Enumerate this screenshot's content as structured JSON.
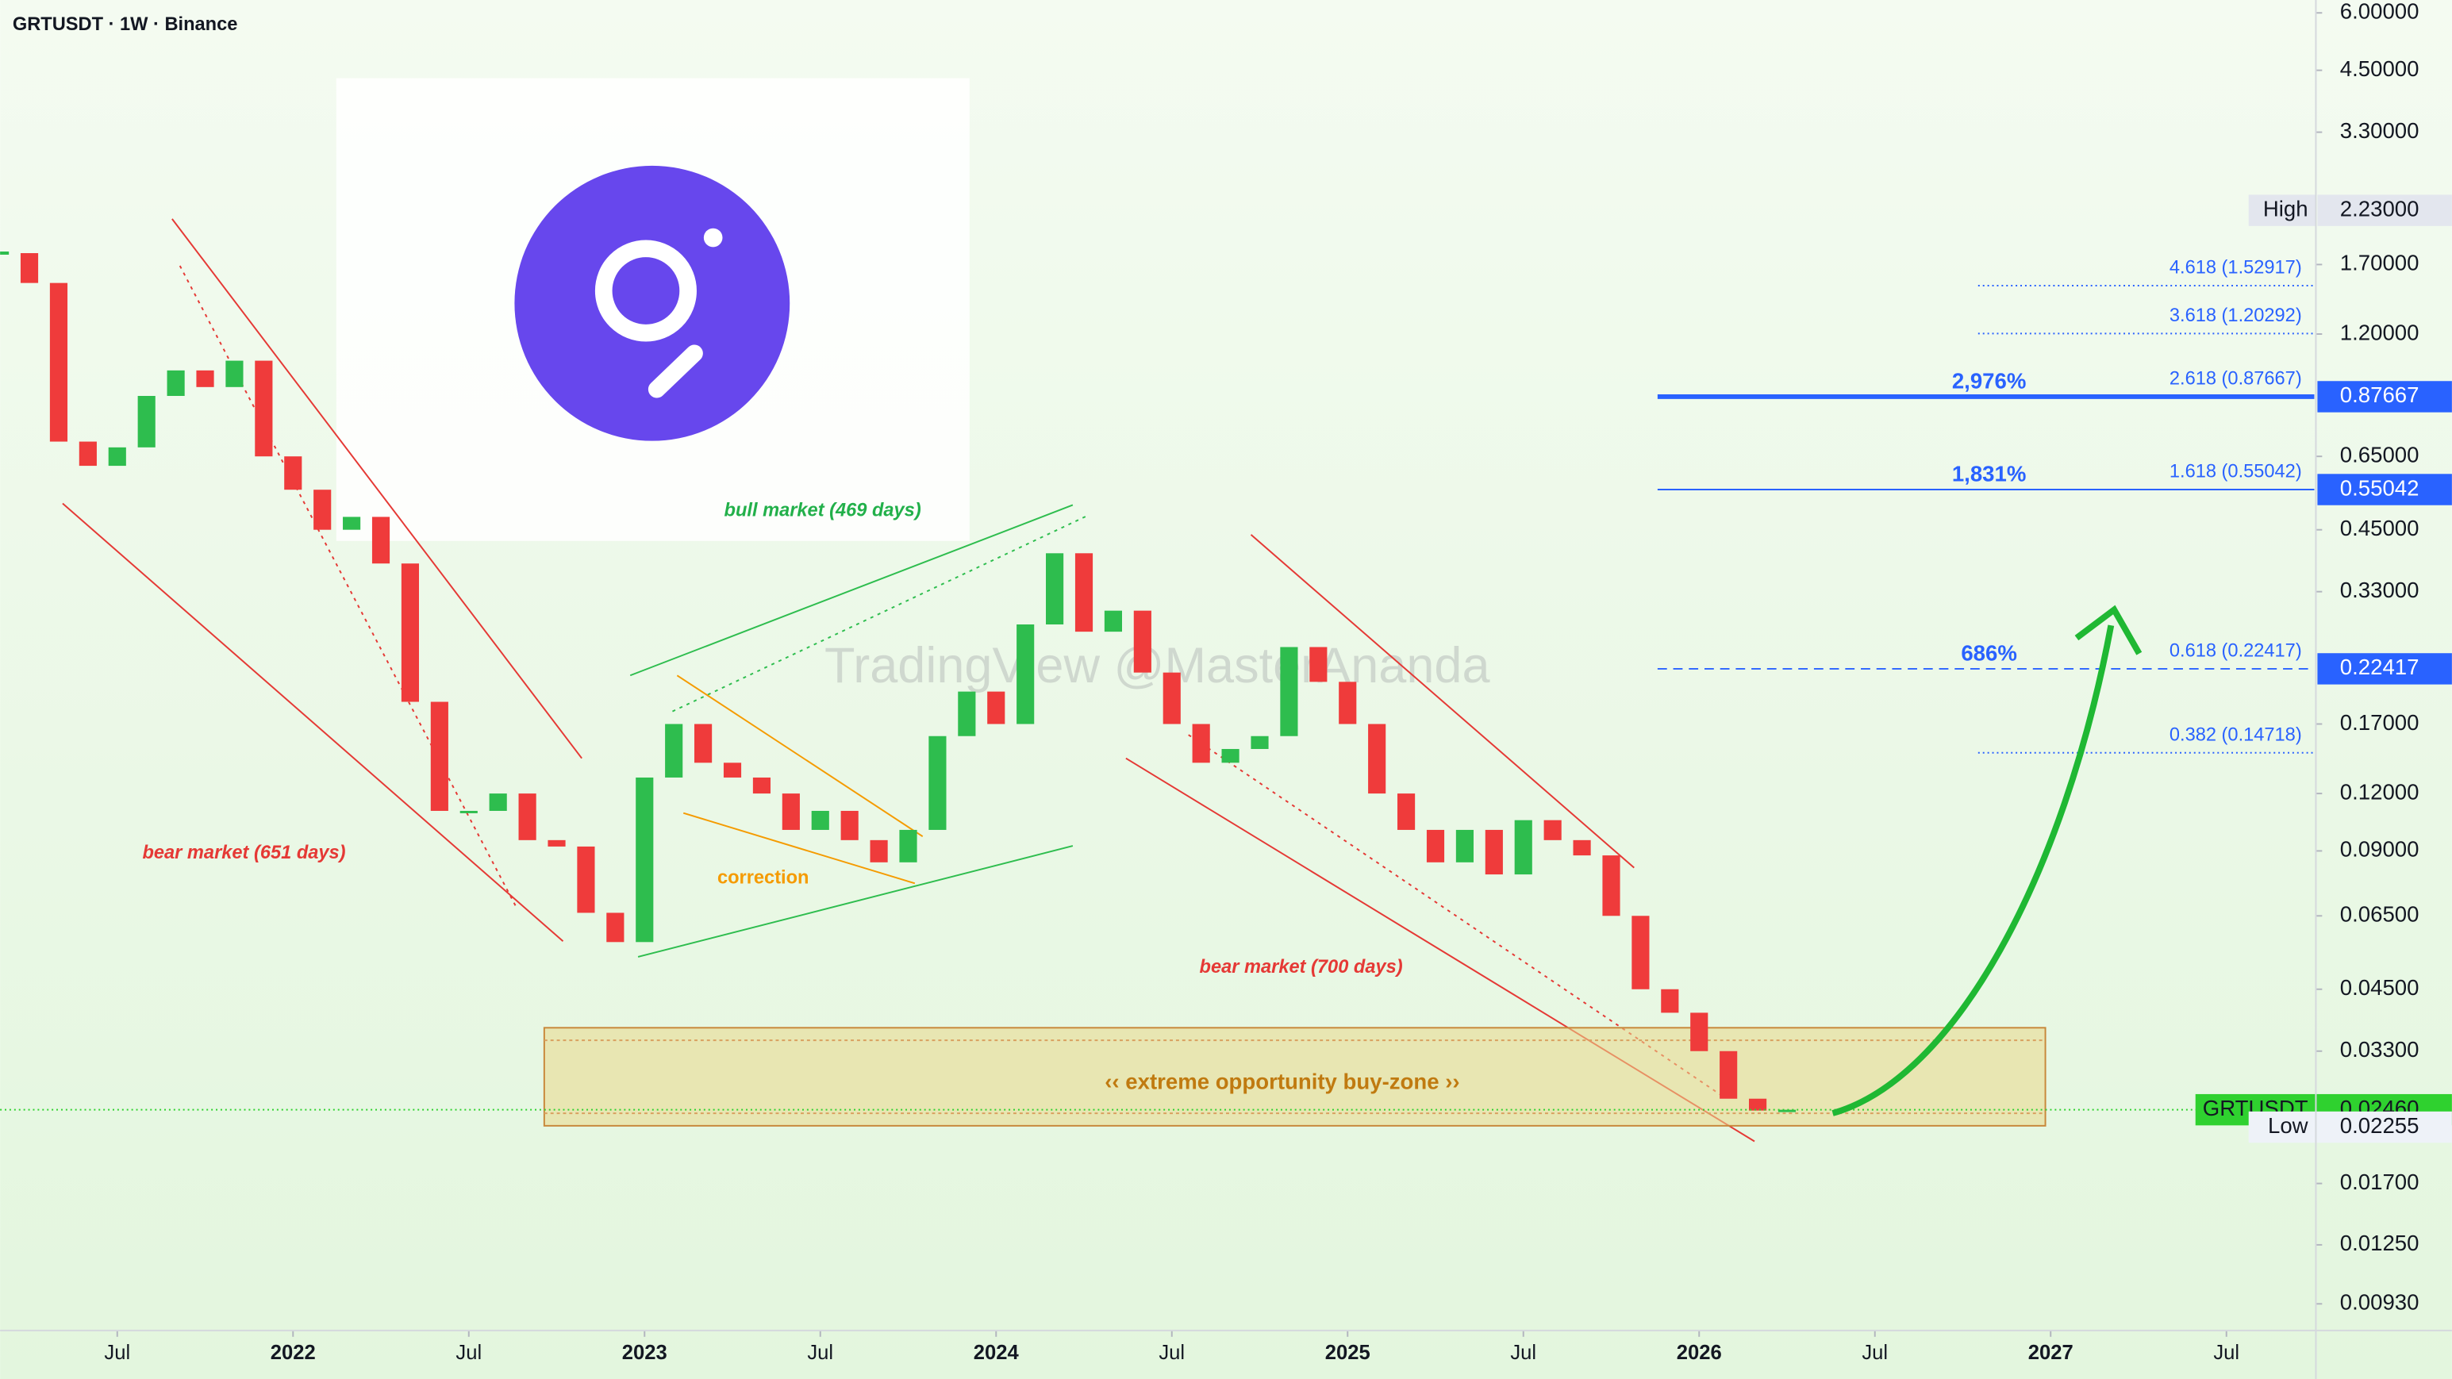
{
  "chart_data": {
    "type": "candlestick",
    "title": "GRTUSDT · 1W · Binance",
    "watermark": "TradingView @MasterAnanda",
    "log_scale": true,
    "xlim": [
      "2021-03",
      "2027-10"
    ],
    "xticks": [
      {
        "value": "2021-07",
        "label": "Jul"
      },
      {
        "value": "2022-01",
        "label": "2022"
      },
      {
        "value": "2022-07",
        "label": "Jul"
      },
      {
        "value": "2023-01",
        "label": "2023"
      },
      {
        "value": "2023-07",
        "label": "Jul"
      },
      {
        "value": "2024-01",
        "label": "2024"
      },
      {
        "value": "2024-07",
        "label": "Jul"
      },
      {
        "value": "2025-01",
        "label": "2025"
      },
      {
        "value": "2025-07",
        "label": "Jul"
      },
      {
        "value": "2026-01",
        "label": "2026"
      },
      {
        "value": "2026-07",
        "label": "Jul"
      },
      {
        "value": "2027-01",
        "label": "2027"
      },
      {
        "value": "2027-07",
        "label": "Jul"
      }
    ],
    "ylim": [
      0.0082,
      6.4
    ],
    "yticks": [
      {
        "value": 6,
        "label": "6.00000"
      },
      {
        "value": 4.5,
        "label": "4.50000"
      },
      {
        "value": 3.3,
        "label": "3.30000"
      },
      {
        "value": 1.7,
        "label": "1.70000"
      },
      {
        "value": 1.2,
        "label": "1.20000"
      },
      {
        "value": 0.65,
        "label": "0.65000"
      },
      {
        "value": 0.45,
        "label": "0.45000"
      },
      {
        "value": 0.33,
        "label": "0.33000"
      },
      {
        "value": 0.17,
        "label": "0.17000"
      },
      {
        "value": 0.12,
        "label": "0.12000"
      },
      {
        "value": 0.09,
        "label": "0.09000"
      },
      {
        "value": 0.065,
        "label": "0.06500"
      },
      {
        "value": 0.045,
        "label": "0.04500"
      },
      {
        "value": 0.033,
        "label": "0.03300"
      },
      {
        "value": 0.017,
        "label": "0.01700"
      },
      {
        "value": 0.0125,
        "label": "0.01250"
      },
      {
        "value": 0.0093,
        "label": "0.00930"
      }
    ],
    "x": [
      "2021-03",
      "2021-04",
      "2021-05",
      "2021-06",
      "2021-07",
      "2021-08",
      "2021-09",
      "2021-10",
      "2021-11",
      "2021-12",
      "2022-01",
      "2022-02",
      "2022-03",
      "2022-04",
      "2022-05",
      "2022-06",
      "2022-07",
      "2022-08",
      "2022-09",
      "2022-10",
      "2022-11",
      "2022-12",
      "2023-01",
      "2023-02",
      "2023-03",
      "2023-04",
      "2023-05",
      "2023-06",
      "2023-07",
      "2023-08",
      "2023-09",
      "2023-10",
      "2023-11",
      "2023-12",
      "2024-01",
      "2024-02",
      "2024-03",
      "2024-04",
      "2024-05",
      "2024-06",
      "2024-07",
      "2024-08",
      "2024-09",
      "2024-10",
      "2024-11",
      "2024-12",
      "2025-01",
      "2025-02",
      "2025-03",
      "2025-04",
      "2025-05",
      "2025-06",
      "2025-07",
      "2025-08",
      "2025-09",
      "2025-10",
      "2025-11",
      "2025-12",
      "2026-01",
      "2026-02",
      "2026-03",
      "2026-04"
    ],
    "series": [
      {
        "name": "GRTUSDT",
        "up_color": "#2ebd4e",
        "down_color": "#ef3b3b",
        "values": [
          1.8,
          1.55,
          0.7,
          0.62,
          0.68,
          0.88,
          1.0,
          0.92,
          1.05,
          0.65,
          0.55,
          0.45,
          0.48,
          0.38,
          0.19,
          0.11,
          0.11,
          0.12,
          0.095,
          0.092,
          0.066,
          0.057,
          0.13,
          0.17,
          0.14,
          0.13,
          0.12,
          0.1,
          0.11,
          0.095,
          0.085,
          0.1,
          0.16,
          0.2,
          0.17,
          0.28,
          0.4,
          0.27,
          0.3,
          0.22,
          0.17,
          0.14,
          0.15,
          0.16,
          0.25,
          0.21,
          0.17,
          0.12,
          0.1,
          0.085,
          0.1,
          0.08,
          0.105,
          0.095,
          0.088,
          0.065,
          0.045,
          0.04,
          0.033,
          0.026,
          0.0245,
          0.0246
        ]
      }
    ],
    "markers": [
      {
        "name": "High",
        "value": 2.23,
        "value_label": "2.23000",
        "color": "#e3e6ee"
      },
      {
        "name": "GRTUSDT",
        "value": 0.0246,
        "value_label": "0.02460",
        "color": "#2fd12f"
      },
      {
        "name": "Low",
        "value": 0.02255,
        "value_label": "0.02255"
      }
    ],
    "fib_levels": [
      {
        "label": "4.618 (1.52917)",
        "value": 1.52917
      },
      {
        "label": "3.618 (1.20292)",
        "value": 1.20292
      },
      {
        "label": "2.618 (0.87667)",
        "value": 0.87667,
        "gain_label": "2,976%",
        "axis_label": "0.87667",
        "style": "thick"
      },
      {
        "label": "1.618 (0.55042)",
        "value": 0.55042,
        "gain_label": "1,831%",
        "axis_label": "0.55042",
        "style": "solid"
      },
      {
        "label": "0.618 (0.22417)",
        "value": 0.22417,
        "gain_label": "686%",
        "axis_label": "0.22417",
        "style": "dashed"
      },
      {
        "label": "0.382 (0.14718)",
        "value": 0.14718
      }
    ],
    "fib_color": "#2962ff",
    "zone": {
      "label": "‹‹ extreme opportunity buy-zone ››",
      "range": [
        0.0227,
        0.0371
      ]
    },
    "annotations": [
      "bull market (469 days)",
      "correction",
      "bear market (651 days)",
      "bear market (700 days)"
    ]
  }
}
